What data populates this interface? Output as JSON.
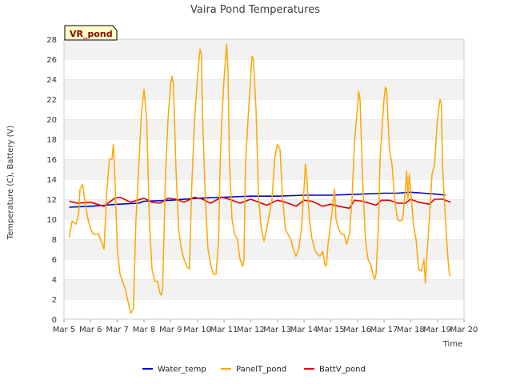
{
  "chart_data": {
    "type": "line",
    "title": "Vaira Pond Temperatures",
    "xlabel": "Time",
    "ylabel": "Temperature (C), Battery (V)",
    "badge": "VR_pond",
    "xlim": [
      5,
      20
    ],
    "ylim": [
      0,
      28
    ],
    "x_ticks": [
      {
        "value": 5,
        "label": "Mar 5"
      },
      {
        "value": 6,
        "label": "Mar 6"
      },
      {
        "value": 7,
        "label": "Mar 7"
      },
      {
        "value": 8,
        "label": "Mar 8"
      },
      {
        "value": 9,
        "label": "Mar 9"
      },
      {
        "value": 10,
        "label": "Mar 10"
      },
      {
        "value": 11,
        "label": "Mar 11"
      },
      {
        "value": 12,
        "label": "Mar 12"
      },
      {
        "value": 13,
        "label": "Mar 13"
      },
      {
        "value": 14,
        "label": "Mar 14"
      },
      {
        "value": 15,
        "label": "Mar 15"
      },
      {
        "value": 16,
        "label": "Mar 16"
      },
      {
        "value": 17,
        "label": "Mar 17"
      },
      {
        "value": 18,
        "label": "Mar 18"
      },
      {
        "value": 19,
        "label": "Mar 19"
      },
      {
        "value": 20,
        "label": "Mar 20"
      }
    ],
    "y_ticks": [
      0,
      2,
      4,
      6,
      8,
      10,
      12,
      14,
      16,
      18,
      20,
      22,
      24,
      26,
      28
    ],
    "grid": "horizontal bands",
    "legend_position": "bottom",
    "series": [
      {
        "name": "Water_temp",
        "color": "#0000cc",
        "points": [
          [
            5.2,
            11.2
          ],
          [
            6.0,
            11.3
          ],
          [
            7.0,
            11.5
          ],
          [
            7.8,
            11.6
          ],
          [
            8.0,
            11.8
          ],
          [
            9.0,
            11.9
          ],
          [
            10.0,
            12.1
          ],
          [
            11.0,
            12.2
          ],
          [
            12.0,
            12.3
          ],
          [
            13.0,
            12.3
          ],
          [
            14.0,
            12.4
          ],
          [
            15.0,
            12.4
          ],
          [
            16.0,
            12.5
          ],
          [
            17.0,
            12.6
          ],
          [
            17.5,
            12.6
          ],
          [
            18.0,
            12.7
          ],
          [
            18.5,
            12.6
          ],
          [
            19.0,
            12.5
          ],
          [
            19.3,
            12.4
          ]
        ]
      },
      {
        "name": "PanelT_pond",
        "color": "#ffa500",
        "points": [
          [
            5.2,
            8.2
          ],
          [
            5.3,
            9.8
          ],
          [
            5.45,
            9.5
          ],
          [
            5.55,
            10.5
          ],
          [
            5.6,
            13.0
          ],
          [
            5.7,
            13.5
          ],
          [
            5.8,
            11.5
          ],
          [
            5.9,
            10.0
          ],
          [
            6.0,
            9.0
          ],
          [
            6.1,
            8.5
          ],
          [
            6.3,
            8.5
          ],
          [
            6.5,
            7.0
          ],
          [
            6.6,
            12.5
          ],
          [
            6.7,
            16.0
          ],
          [
            6.8,
            16.0
          ],
          [
            6.85,
            17.5
          ],
          [
            6.9,
            15.0
          ],
          [
            7.0,
            7.0
          ],
          [
            7.1,
            4.5
          ],
          [
            7.3,
            3.0
          ],
          [
            7.5,
            0.6
          ],
          [
            7.6,
            1.0
          ],
          [
            7.7,
            10.0
          ],
          [
            7.8,
            15.0
          ],
          [
            7.9,
            20.5
          ],
          [
            8.0,
            23.0
          ],
          [
            8.1,
            20.0
          ],
          [
            8.2,
            10.0
          ],
          [
            8.3,
            5.0
          ],
          [
            8.4,
            3.8
          ],
          [
            8.5,
            3.8
          ],
          [
            8.6,
            2.6
          ],
          [
            8.65,
            2.4
          ],
          [
            8.7,
            3.0
          ],
          [
            8.8,
            14.0
          ],
          [
            8.9,
            20.0
          ],
          [
            9.0,
            23.5
          ],
          [
            9.05,
            24.3
          ],
          [
            9.1,
            23.5
          ],
          [
            9.2,
            15.0
          ],
          [
            9.3,
            9.0
          ],
          [
            9.4,
            7.0
          ],
          [
            9.5,
            6.0
          ],
          [
            9.6,
            5.3
          ],
          [
            9.7,
            5.0
          ],
          [
            9.8,
            14.0
          ],
          [
            9.9,
            20.0
          ],
          [
            10.0,
            24.0
          ],
          [
            10.1,
            27.0
          ],
          [
            10.15,
            26.5
          ],
          [
            10.2,
            20.0
          ],
          [
            10.3,
            12.0
          ],
          [
            10.4,
            7.0
          ],
          [
            10.5,
            5.5
          ],
          [
            10.6,
            4.5
          ],
          [
            10.7,
            4.5
          ],
          [
            10.8,
            8.0
          ],
          [
            10.85,
            15.0
          ],
          [
            10.9,
            19.0
          ],
          [
            11.0,
            24.0
          ],
          [
            11.1,
            27.5
          ],
          [
            11.15,
            25.0
          ],
          [
            11.2,
            16.0
          ],
          [
            11.3,
            10.0
          ],
          [
            11.4,
            8.5
          ],
          [
            11.5,
            8.0
          ],
          [
            11.6,
            6.0
          ],
          [
            11.7,
            5.3
          ],
          [
            11.75,
            6.0
          ],
          [
            11.8,
            15.0
          ],
          [
            11.9,
            20.0
          ],
          [
            12.0,
            24.0
          ],
          [
            12.05,
            26.3
          ],
          [
            12.1,
            26.0
          ],
          [
            12.2,
            21.0
          ],
          [
            12.3,
            12.0
          ],
          [
            12.4,
            9.0
          ],
          [
            12.5,
            7.8
          ],
          [
            12.6,
            9.0
          ],
          [
            12.7,
            10.5
          ],
          [
            12.8,
            12.0
          ],
          [
            12.9,
            16.0
          ],
          [
            13.0,
            17.5
          ],
          [
            13.1,
            17.0
          ],
          [
            13.2,
            12.0
          ],
          [
            13.3,
            9.0
          ],
          [
            13.4,
            8.5
          ],
          [
            13.5,
            8.0
          ],
          [
            13.6,
            7.0
          ],
          [
            13.7,
            6.3
          ],
          [
            13.8,
            7.0
          ],
          [
            13.9,
            9.0
          ],
          [
            14.0,
            13.0
          ],
          [
            14.05,
            15.5
          ],
          [
            14.1,
            14.5
          ],
          [
            14.2,
            10.0
          ],
          [
            14.3,
            8.0
          ],
          [
            14.4,
            7.0
          ],
          [
            14.5,
            6.5
          ],
          [
            14.6,
            6.3
          ],
          [
            14.7,
            6.8
          ],
          [
            14.8,
            5.3
          ],
          [
            14.85,
            5.5
          ],
          [
            14.9,
            7.5
          ],
          [
            15.0,
            9.5
          ],
          [
            15.1,
            12.0
          ],
          [
            15.15,
            13.0
          ],
          [
            15.2,
            10.0
          ],
          [
            15.3,
            9.0
          ],
          [
            15.4,
            8.5
          ],
          [
            15.5,
            8.5
          ],
          [
            15.6,
            7.5
          ],
          [
            15.7,
            8.5
          ],
          [
            15.8,
            12.0
          ],
          [
            15.9,
            18.0
          ],
          [
            16.0,
            21.0
          ],
          [
            16.05,
            22.8
          ],
          [
            16.1,
            22.0
          ],
          [
            16.2,
            14.0
          ],
          [
            16.3,
            8.0
          ],
          [
            16.4,
            6.0
          ],
          [
            16.5,
            5.5
          ],
          [
            16.6,
            4.3
          ],
          [
            16.65,
            4.0
          ],
          [
            16.7,
            4.5
          ],
          [
            16.8,
            10.0
          ],
          [
            16.85,
            16.0
          ],
          [
            16.9,
            18.0
          ],
          [
            17.0,
            22.0
          ],
          [
            17.05,
            23.2
          ],
          [
            17.1,
            23.0
          ],
          [
            17.2,
            17.0
          ],
          [
            17.3,
            15.5
          ],
          [
            17.4,
            12.0
          ],
          [
            17.5,
            10.0
          ],
          [
            17.6,
            9.8
          ],
          [
            17.7,
            10.0
          ],
          [
            17.8,
            13.0
          ],
          [
            17.85,
            14.8
          ],
          [
            17.9,
            12.0
          ],
          [
            17.95,
            14.5
          ],
          [
            18.0,
            13.0
          ],
          [
            18.1,
            9.5
          ],
          [
            18.2,
            8.0
          ],
          [
            18.3,
            5.0
          ],
          [
            18.4,
            4.8
          ],
          [
            18.5,
            6.0
          ],
          [
            18.55,
            3.6
          ],
          [
            18.6,
            6.0
          ],
          [
            18.7,
            10.0
          ],
          [
            18.8,
            14.5
          ],
          [
            18.9,
            15.5
          ],
          [
            19.0,
            20.0
          ],
          [
            19.1,
            22.0
          ],
          [
            19.15,
            21.5
          ],
          [
            19.2,
            15.0
          ],
          [
            19.3,
            10.0
          ],
          [
            19.4,
            6.0
          ],
          [
            19.45,
            4.5
          ],
          [
            19.5,
            4.3
          ]
        ]
      },
      {
        "name": "BattV_pond",
        "color": "#dd0000",
        "points": [
          [
            5.2,
            11.8
          ],
          [
            5.5,
            11.6
          ],
          [
            6.0,
            11.7
          ],
          [
            6.5,
            11.3
          ],
          [
            6.9,
            12.1
          ],
          [
            7.1,
            12.2
          ],
          [
            7.5,
            11.7
          ],
          [
            8.0,
            12.1
          ],
          [
            8.3,
            11.7
          ],
          [
            8.6,
            11.6
          ],
          [
            8.9,
            12.1
          ],
          [
            9.2,
            12.0
          ],
          [
            9.5,
            11.7
          ],
          [
            9.9,
            12.2
          ],
          [
            10.2,
            12.0
          ],
          [
            10.5,
            11.6
          ],
          [
            10.9,
            12.2
          ],
          [
            11.2,
            12.0
          ],
          [
            11.6,
            11.6
          ],
          [
            12.0,
            12.0
          ],
          [
            12.3,
            11.7
          ],
          [
            12.6,
            11.4
          ],
          [
            13.0,
            11.9
          ],
          [
            13.3,
            11.7
          ],
          [
            13.7,
            11.3
          ],
          [
            14.0,
            11.9
          ],
          [
            14.3,
            11.8
          ],
          [
            14.7,
            11.3
          ],
          [
            15.0,
            11.5
          ],
          [
            15.3,
            11.3
          ],
          [
            15.7,
            11.1
          ],
          [
            15.9,
            11.9
          ],
          [
            16.2,
            11.8
          ],
          [
            16.7,
            11.4
          ],
          [
            16.9,
            11.9
          ],
          [
            17.2,
            11.9
          ],
          [
            17.5,
            11.6
          ],
          [
            17.8,
            11.6
          ],
          [
            18.0,
            12.0
          ],
          [
            18.3,
            11.7
          ],
          [
            18.7,
            11.5
          ],
          [
            18.9,
            12.0
          ],
          [
            19.2,
            12.0
          ],
          [
            19.5,
            11.7
          ]
        ]
      }
    ]
  }
}
